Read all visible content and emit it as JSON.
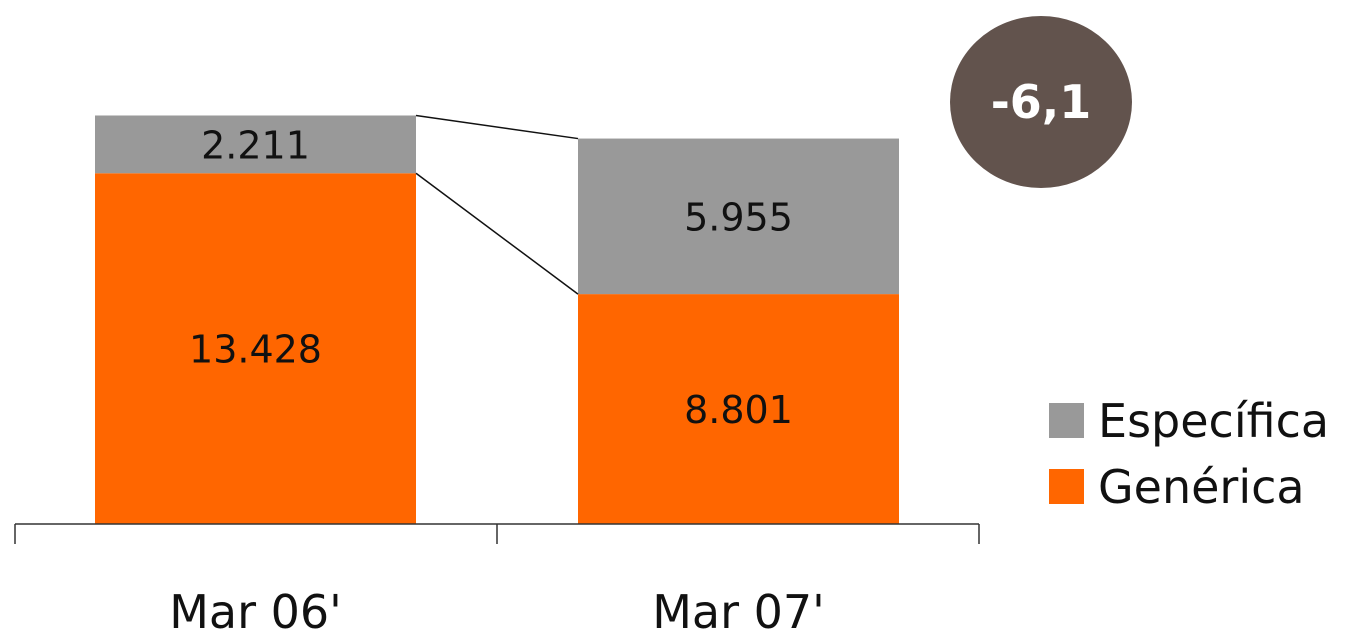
{
  "chart_data": {
    "type": "bar",
    "stacked": true,
    "categories": [
      "Mar 06'",
      "Mar 07'"
    ],
    "series": [
      {
        "name": "Genérica",
        "values": [
          13428,
          8801
        ],
        "labels": [
          "13.428",
          "8.801"
        ],
        "color": "#ff6600"
      },
      {
        "name": "Específica",
        "values": [
          2211,
          5955
        ],
        "labels": [
          "2.211",
          "5.955"
        ],
        "color": "#999999"
      }
    ],
    "legend_order": [
      "Específica",
      "Genérica"
    ],
    "legend_placement": "right",
    "grid": false,
    "ylim": [
      0,
      16500
    ],
    "xlabel": "",
    "ylabel": "",
    "annotation": {
      "text": "-6,1",
      "color": "#62534d"
    }
  }
}
